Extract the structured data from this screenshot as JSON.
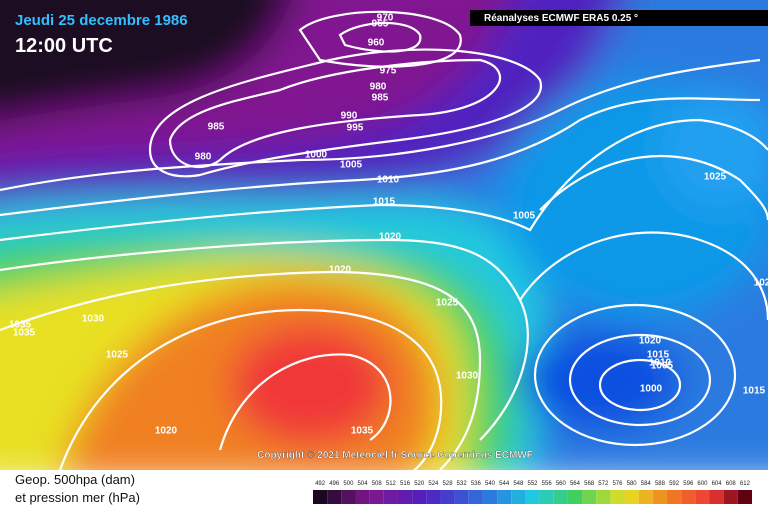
{
  "header": {
    "date": "Jeudi 25 decembre 1986",
    "time": "12:00 UTC",
    "source": "Réanalyses ECMWF ERA5 0.25 °"
  },
  "copyright": "Copyright © 2021 Meteociel.fr Source Copernicus ECMWF",
  "legend": {
    "line1": "Geop. 500hpa (dam)",
    "line2": "et pression mer (hPa)",
    "scale": [
      492,
      496,
      500,
      504,
      508,
      512,
      516,
      520,
      524,
      528,
      532,
      536,
      540,
      544,
      548,
      552,
      556,
      560,
      564,
      568,
      572,
      576,
      580,
      584,
      588,
      592,
      596,
      600,
      604,
      608,
      612
    ]
  },
  "isobar_labels": [
    970,
    965,
    960,
    975,
    980,
    985,
    985,
    990,
    995,
    980,
    1000,
    1005,
    1010,
    1015,
    1020,
    1005,
    1025,
    1020,
    1025,
    1030,
    1035,
    1035,
    1025,
    1020,
    1015,
    1010,
    1005,
    1000,
    1015,
    1030,
    1035,
    1020,
    102
  ]
}
